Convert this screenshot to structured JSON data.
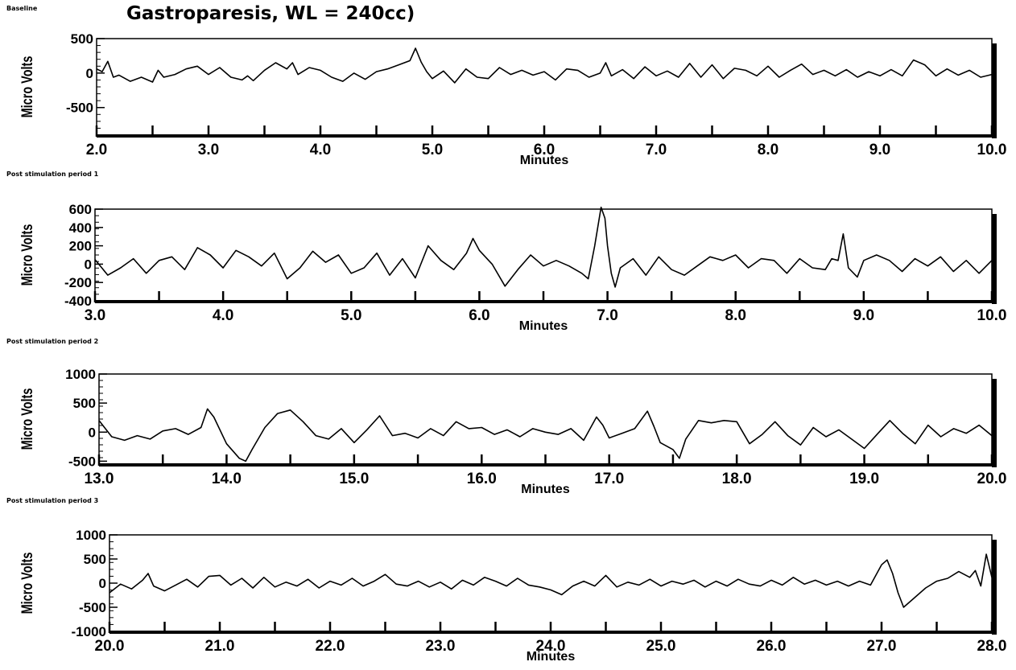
{
  "title": "Gastroparesis, WL = 240cc)",
  "chart_data": [
    {
      "type": "line",
      "panel_label": "Baseline",
      "xlabel": "Minutes",
      "ylabel": "Micro Volts",
      "xlim": [
        2.0,
        10.0
      ],
      "ylim": [
        -900,
        500
      ],
      "xticks": [
        "2.0",
        "3.0",
        "4.0",
        "5.0",
        "6.0",
        "7.0",
        "8.0",
        "9.0",
        "10.0"
      ],
      "yticks": [
        "500",
        "0",
        "-500"
      ],
      "series": [
        {
          "x": [
            2.0,
            2.05,
            2.1,
            2.15,
            2.2,
            2.3,
            2.4,
            2.5,
            2.55,
            2.6,
            2.7,
            2.8,
            2.9,
            3.0,
            3.1,
            3.2,
            3.3,
            3.35,
            3.4,
            3.5,
            3.6,
            3.7,
            3.75,
            3.8,
            3.9,
            4.0,
            4.1,
            4.2,
            4.3,
            4.4,
            4.5,
            4.6,
            4.7,
            4.8,
            4.85,
            4.9,
            4.95,
            5.0,
            5.1,
            5.2,
            5.3,
            5.4,
            5.5,
            5.6,
            5.7,
            5.8,
            5.9,
            6.0,
            6.1,
            6.2,
            6.3,
            6.4,
            6.5,
            6.55,
            6.6,
            6.7,
            6.8,
            6.9,
            7.0,
            7.1,
            7.2,
            7.3,
            7.4,
            7.5,
            7.6,
            7.7,
            7.8,
            7.9,
            8.0,
            8.1,
            8.2,
            8.3,
            8.4,
            8.5,
            8.6,
            8.7,
            8.8,
            8.9,
            9.0,
            9.1,
            9.2,
            9.3,
            9.4,
            9.5,
            9.6,
            9.7,
            9.8,
            9.9,
            10.0
          ],
          "y": [
            60,
            20,
            170,
            -60,
            -30,
            -120,
            -60,
            -130,
            40,
            -60,
            -20,
            60,
            100,
            -20,
            80,
            -60,
            -100,
            -40,
            -110,
            40,
            150,
            60,
            150,
            -20,
            80,
            40,
            -60,
            -120,
            0,
            -90,
            20,
            60,
            120,
            180,
            360,
            160,
            20,
            -80,
            30,
            -140,
            60,
            -60,
            -80,
            80,
            -20,
            40,
            -30,
            20,
            -100,
            60,
            40,
            -60,
            0,
            150,
            -40,
            50,
            -80,
            90,
            -40,
            30,
            -60,
            140,
            -60,
            120,
            -80,
            70,
            40,
            -40,
            100,
            -60,
            40,
            130,
            -20,
            40,
            -40,
            50,
            -60,
            20,
            -40,
            50,
            -40,
            190,
            120,
            -40,
            60,
            -30,
            40,
            -60,
            -20
          ]
        }
      ]
    },
    {
      "type": "line",
      "panel_label": "Post stimulation period 1",
      "xlabel": "Minutes",
      "ylabel": "Micro Volts",
      "xlim": [
        3.0,
        10.0
      ],
      "ylim": [
        -400,
        600
      ],
      "xticks": [
        "3.0",
        "4.0",
        "5.0",
        "6.0",
        "7.0",
        "8.0",
        "9.0",
        "10.0"
      ],
      "yticks": [
        "600",
        "400",
        "200",
        "0",
        "-200",
        "-400"
      ],
      "series": [
        {
          "x": [
            3.0,
            3.1,
            3.2,
            3.3,
            3.4,
            3.5,
            3.6,
            3.7,
            3.8,
            3.9,
            4.0,
            4.1,
            4.2,
            4.3,
            4.4,
            4.5,
            4.6,
            4.7,
            4.8,
            4.9,
            5.0,
            5.1,
            5.2,
            5.3,
            5.4,
            5.5,
            5.6,
            5.7,
            5.8,
            5.9,
            5.95,
            6.0,
            6.1,
            6.2,
            6.3,
            6.4,
            6.5,
            6.6,
            6.7,
            6.8,
            6.85,
            6.9,
            6.95,
            6.98,
            7.0,
            7.03,
            7.06,
            7.1,
            7.2,
            7.3,
            7.4,
            7.5,
            7.6,
            7.7,
            7.8,
            7.9,
            8.0,
            8.1,
            8.2,
            8.3,
            8.4,
            8.5,
            8.6,
            8.7,
            8.75,
            8.8,
            8.84,
            8.88,
            8.95,
            9.0,
            9.1,
            9.2,
            9.3,
            9.4,
            9.5,
            9.6,
            9.7,
            9.8,
            9.9,
            10.0
          ],
          "y": [
            50,
            -120,
            -40,
            60,
            -100,
            40,
            80,
            -60,
            180,
            100,
            -40,
            150,
            80,
            -20,
            120,
            -160,
            -40,
            140,
            20,
            100,
            -100,
            -40,
            120,
            -120,
            60,
            -150,
            200,
            40,
            -60,
            120,
            280,
            150,
            0,
            -240,
            -60,
            100,
            -20,
            40,
            -20,
            -100,
            -160,
            200,
            620,
            500,
            200,
            -100,
            -250,
            -40,
            60,
            -120,
            80,
            -60,
            -120,
            -20,
            80,
            40,
            100,
            -40,
            60,
            40,
            -100,
            60,
            -40,
            -60,
            60,
            40,
            330,
            -40,
            -140,
            40,
            100,
            40,
            -80,
            60,
            -20,
            80,
            -80,
            40,
            -100,
            40
          ]
        }
      ]
    },
    {
      "type": "line",
      "panel_label": "Post stimulation period 2",
      "xlabel": "Minutes",
      "ylabel": "Micro Volts",
      "xlim": [
        13.0,
        20.0
      ],
      "ylim": [
        -550,
        1000
      ],
      "xticks": [
        "13.0",
        "14.0",
        "15.0",
        "16.0",
        "17.0",
        "18.0",
        "19.0",
        "20.0"
      ],
      "yticks": [
        "1000",
        "500",
        "0",
        "-500"
      ],
      "series": [
        {
          "x": [
            13.0,
            13.1,
            13.2,
            13.3,
            13.4,
            13.5,
            13.6,
            13.7,
            13.8,
            13.85,
            13.9,
            14.0,
            14.1,
            14.15,
            14.2,
            14.3,
            14.4,
            14.5,
            14.6,
            14.7,
            14.8,
            14.9,
            15.0,
            15.1,
            15.2,
            15.3,
            15.4,
            15.5,
            15.6,
            15.7,
            15.8,
            15.9,
            16.0,
            16.1,
            16.2,
            16.3,
            16.4,
            16.5,
            16.6,
            16.7,
            16.8,
            16.9,
            16.95,
            17.0,
            17.1,
            17.2,
            17.3,
            17.35,
            17.4,
            17.5,
            17.55,
            17.6,
            17.7,
            17.8,
            17.9,
            18.0,
            18.1,
            18.2,
            18.3,
            18.4,
            18.5,
            18.6,
            18.7,
            18.8,
            18.9,
            19.0,
            19.1,
            19.2,
            19.3,
            19.4,
            19.5,
            19.6,
            19.7,
            19.8,
            19.9,
            20.0
          ],
          "y": [
            200,
            -80,
            -140,
            -60,
            -120,
            20,
            60,
            -40,
            80,
            400,
            260,
            -200,
            -450,
            -500,
            -300,
            80,
            320,
            380,
            180,
            -60,
            -120,
            60,
            -180,
            40,
            280,
            -60,
            -20,
            -100,
            60,
            -60,
            180,
            60,
            80,
            -40,
            40,
            -80,
            60,
            0,
            -40,
            60,
            -140,
            260,
            120,
            -100,
            -20,
            60,
            360,
            100,
            -180,
            -300,
            -450,
            -120,
            200,
            160,
            200,
            180,
            -200,
            -40,
            180,
            -60,
            -220,
            80,
            -80,
            40,
            -120,
            -280,
            -40,
            200,
            -20,
            -200,
            120,
            -80,
            60,
            -20,
            120,
            -60
          ]
        }
      ]
    },
    {
      "type": "line",
      "panel_label": "Post stimulation period 3",
      "xlabel": "Minutes",
      "ylabel": "Micro Volts",
      "xlim": [
        20.0,
        28.0
      ],
      "ylim": [
        -1000,
        1000
      ],
      "xticks": [
        "20.0",
        "21.0",
        "22.0",
        "23.0",
        "24.0",
        "25.0",
        "26.0",
        "27.0",
        "28.0"
      ],
      "yticks": [
        "1000",
        "500",
        "0",
        "-500",
        "-1000"
      ],
      "series": [
        {
          "x": [
            20.0,
            20.1,
            20.2,
            20.3,
            20.35,
            20.4,
            20.5,
            20.6,
            20.7,
            20.8,
            20.9,
            21.0,
            21.1,
            21.2,
            21.3,
            21.4,
            21.5,
            21.6,
            21.7,
            21.8,
            21.9,
            22.0,
            22.1,
            22.2,
            22.3,
            22.4,
            22.5,
            22.6,
            22.7,
            22.8,
            22.9,
            23.0,
            23.1,
            23.2,
            23.3,
            23.4,
            23.5,
            23.6,
            23.7,
            23.8,
            23.9,
            24.0,
            24.1,
            24.2,
            24.3,
            24.4,
            24.5,
            24.6,
            24.7,
            24.8,
            24.9,
            25.0,
            25.1,
            25.2,
            25.3,
            25.4,
            25.5,
            25.6,
            25.7,
            25.8,
            25.9,
            26.0,
            26.1,
            26.2,
            26.3,
            26.4,
            26.5,
            26.6,
            26.7,
            26.8,
            26.9,
            27.0,
            27.05,
            27.1,
            27.15,
            27.2,
            27.3,
            27.4,
            27.5,
            27.6,
            27.7,
            27.8,
            27.85,
            27.9,
            27.95,
            28.0
          ],
          "y": [
            -200,
            -20,
            -120,
            60,
            200,
            -60,
            -160,
            -40,
            80,
            -80,
            140,
            160,
            -40,
            100,
            -100,
            120,
            -80,
            20,
            -60,
            80,
            -100,
            40,
            -40,
            100,
            -60,
            40,
            180,
            -20,
            -60,
            40,
            -80,
            20,
            -120,
            60,
            -40,
            120,
            40,
            -60,
            100,
            -40,
            -80,
            -140,
            -240,
            -60,
            40,
            -60,
            160,
            -80,
            20,
            -40,
            80,
            -60,
            40,
            -20,
            60,
            -80,
            40,
            -60,
            80,
            -20,
            -60,
            60,
            -40,
            120,
            -20,
            60,
            -40,
            40,
            -60,
            40,
            -40,
            380,
            480,
            200,
            -200,
            -500,
            -300,
            -100,
            40,
            100,
            240,
            120,
            260,
            -60,
            600,
            120
          ]
        }
      ]
    }
  ]
}
